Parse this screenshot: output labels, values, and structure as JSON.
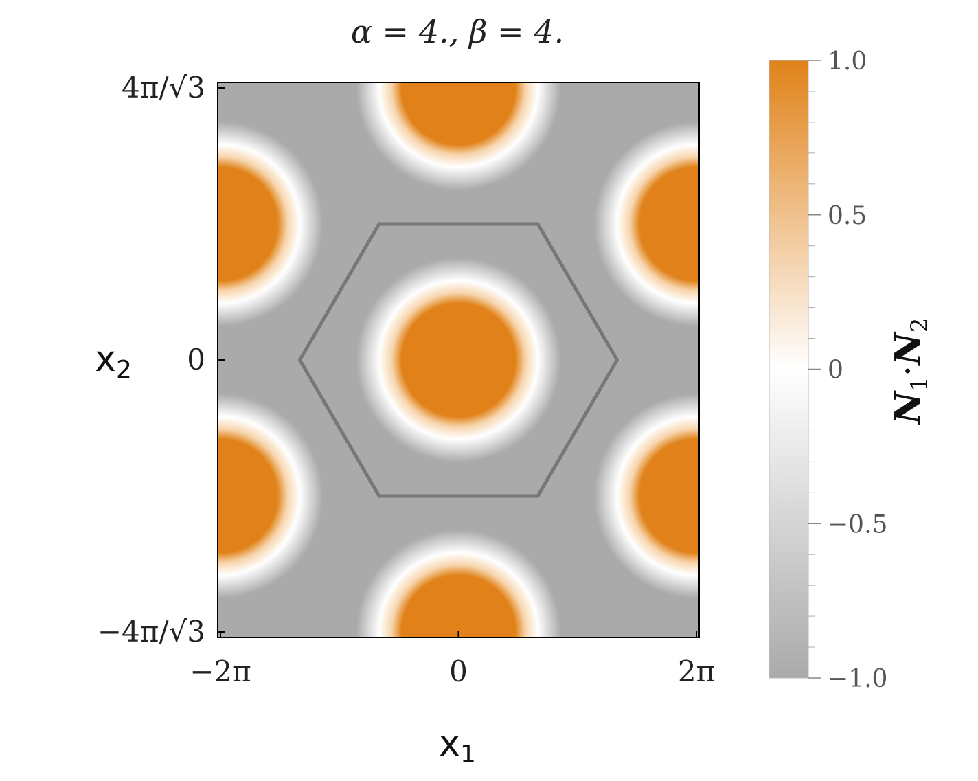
{
  "chart_data": {
    "type": "heatmap",
    "title": "α = 4.,  β = 4.",
    "xlabel": "x",
    "xlabel_sub": "1",
    "ylabel": "x",
    "ylabel_sub": "2",
    "x_range": [
      -6.2832,
      6.2832
    ],
    "y_range": [
      -7.2552,
      7.2552
    ],
    "x_ticks": [
      {
        "value": -6.2832,
        "label": "−2π"
      },
      {
        "value": 0,
        "label": "0"
      },
      {
        "value": 6.2832,
        "label": "2π"
      }
    ],
    "y_ticks": [
      {
        "value": -7.2552,
        "label": "−4π/√3"
      },
      {
        "value": 0,
        "label": "0"
      },
      {
        "value": 7.2552,
        "label": "4π/√3"
      }
    ],
    "colorbar": {
      "label": "N",
      "label_sub1": "1",
      "label_dot": "·",
      "label_sub2": "2",
      "range": [
        -1.0,
        1.0
      ],
      "ticks": [
        {
          "value": 1.0,
          "label": "1.0"
        },
        {
          "value": 0.5,
          "label": "0.5"
        },
        {
          "value": 0,
          "label": "0"
        },
        {
          "value": -0.5,
          "label": "−0.5"
        },
        {
          "value": -1.0,
          "label": "−1.0"
        }
      ],
      "low_color": "#aaaaaa",
      "mid_color": "#ffffff",
      "high_color": "#e08219"
    },
    "hexagon_color": "#777777",
    "hexagon_vertices": [
      [
        4.1888,
        0
      ],
      [
        2.0944,
        3.6276
      ],
      [
        -2.0944,
        3.6276
      ],
      [
        -4.1888,
        0
      ],
      [
        -2.0944,
        -3.6276
      ],
      [
        2.0944,
        -3.6276
      ]
    ],
    "disc_centers": [
      [
        0,
        0
      ],
      [
        0,
        7.2552
      ],
      [
        0,
        -7.2552
      ],
      [
        -6.2832,
        3.6276
      ],
      [
        6.2832,
        3.6276
      ],
      [
        -6.2832,
        -3.6276
      ],
      [
        6.2832,
        -3.6276
      ]
    ],
    "disc_core_radius": 1.5,
    "disc_halo_radius": 2.7
  }
}
